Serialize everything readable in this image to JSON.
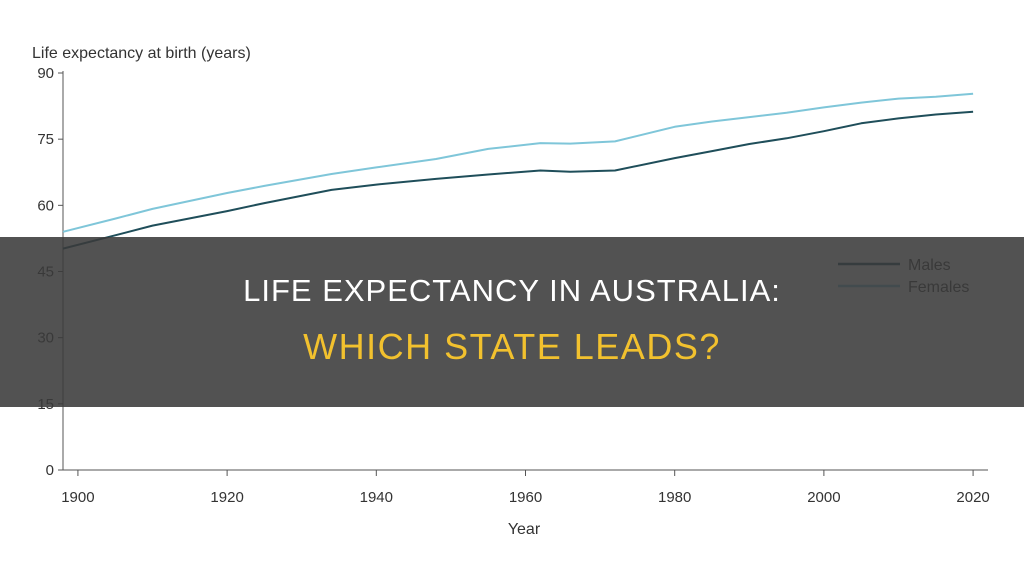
{
  "chart_data": {
    "type": "line",
    "ylabel": "Life expectancy at birth (years)",
    "xlabel": "Year",
    "xlim": [
      1898,
      2022
    ],
    "ylim": [
      0,
      90
    ],
    "xticks": [
      1900,
      1920,
      1940,
      1960,
      1980,
      2000,
      2020
    ],
    "yticks": [
      0,
      15,
      30,
      45,
      60,
      75,
      90
    ],
    "grid": false,
    "legend_position": "right",
    "series": [
      {
        "name": "Males",
        "color": "#1f4e5a",
        "x": [
          1898,
          1905,
          1910,
          1920,
          1925,
          1934,
          1940,
          1948,
          1955,
          1962,
          1966,
          1972,
          1980,
          1985,
          1990,
          1995,
          2000,
          2005,
          2010,
          2015,
          2020
        ],
        "y": [
          50.2,
          53.2,
          55.4,
          58.7,
          60.5,
          63.5,
          64.7,
          66.0,
          67.0,
          67.9,
          67.6,
          67.9,
          70.7,
          72.3,
          73.9,
          75.2,
          76.8,
          78.6,
          79.7,
          80.6,
          81.2
        ]
      },
      {
        "name": "Females",
        "color": "#7fc6d9",
        "x": [
          1898,
          1905,
          1910,
          1920,
          1925,
          1934,
          1940,
          1948,
          1955,
          1962,
          1966,
          1972,
          1980,
          1985,
          1990,
          1995,
          2000,
          2005,
          2010,
          2015,
          2020
        ],
        "y": [
          54.0,
          57.0,
          59.2,
          62.8,
          64.4,
          67.1,
          68.6,
          70.5,
          72.8,
          74.1,
          74.0,
          74.5,
          77.8,
          79.0,
          80.0,
          81.0,
          82.2,
          83.3,
          84.2,
          84.6,
          85.3
        ]
      }
    ]
  },
  "banner": {
    "line1": "LIFE EXPECTANCY IN AUSTRALIA:",
    "line2": "WHICH STATE LEADS?"
  }
}
